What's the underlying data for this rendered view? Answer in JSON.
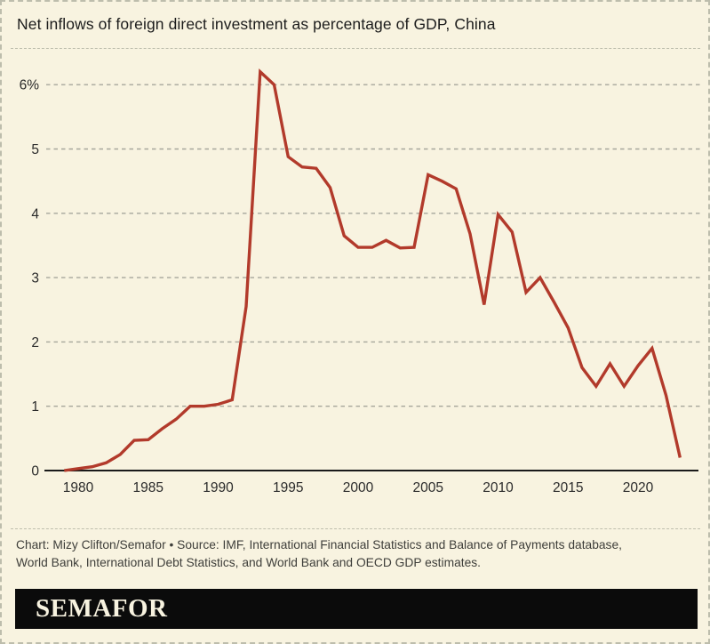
{
  "page": {
    "title": "Net inflows of foreign direct investment as percentage of GDP, China",
    "background": "#f8f3e0"
  },
  "chart_data": {
    "type": "line",
    "title": "Net inflows of foreign direct investment as percentage of GDP, China",
    "xlabel": "",
    "ylabel": "",
    "xlim": [
      1979,
      2024
    ],
    "ylim": [
      0,
      6.5
    ],
    "grid": "horizontal-dashed",
    "grid_color": "#a6a69b",
    "axis_color": "#1a1a1a",
    "legend": "none",
    "x_ticks": [
      1980,
      1985,
      1990,
      1995,
      2000,
      2005,
      2010,
      2015,
      2020
    ],
    "y_ticks": [
      {
        "value": 0,
        "label": "0"
      },
      {
        "value": 1,
        "label": "1"
      },
      {
        "value": 2,
        "label": "2"
      },
      {
        "value": 3,
        "label": "3"
      },
      {
        "value": 4,
        "label": "4"
      },
      {
        "value": 5,
        "label": "5"
      },
      {
        "value": 6,
        "label": "6%"
      }
    ],
    "series": [
      {
        "name": "FDI net inflows (% of GDP)",
        "color": "#b23a2b",
        "x": [
          1979,
          1980,
          1981,
          1982,
          1983,
          1984,
          1985,
          1986,
          1987,
          1988,
          1989,
          1990,
          1991,
          1992,
          1993,
          1994,
          1995,
          1996,
          1997,
          1998,
          1999,
          2000,
          2001,
          2002,
          2003,
          2004,
          2005,
          2006,
          2007,
          2008,
          2009,
          2010,
          2011,
          2012,
          2013,
          2014,
          2015,
          2016,
          2017,
          2018,
          2019,
          2020,
          2021,
          2022,
          2023
        ],
        "values": [
          0.0,
          0.03,
          0.06,
          0.12,
          0.25,
          0.47,
          0.48,
          0.65,
          0.8,
          1.0,
          1.0,
          1.03,
          1.1,
          2.55,
          6.2,
          6.0,
          4.88,
          4.72,
          4.7,
          4.4,
          3.65,
          3.47,
          3.47,
          3.58,
          3.46,
          3.47,
          4.6,
          4.5,
          4.38,
          3.68,
          2.58,
          3.98,
          3.71,
          2.77,
          3.0,
          2.62,
          2.22,
          1.6,
          1.31,
          1.66,
          1.31,
          1.63,
          1.9,
          1.17,
          0.2
        ]
      }
    ]
  },
  "footer": {
    "lines": [
      "Chart: Mizy Clifton/Semafor • Source: IMF, International Financial Statistics and Balance of Payments database,",
      "World Bank, International Debt Statistics, and World Bank and OECD GDP estimates."
    ]
  },
  "brand": {
    "logo": "SEMAFOR",
    "bar_color": "#0b0b0b",
    "text_color": "#f8f3e0"
  }
}
